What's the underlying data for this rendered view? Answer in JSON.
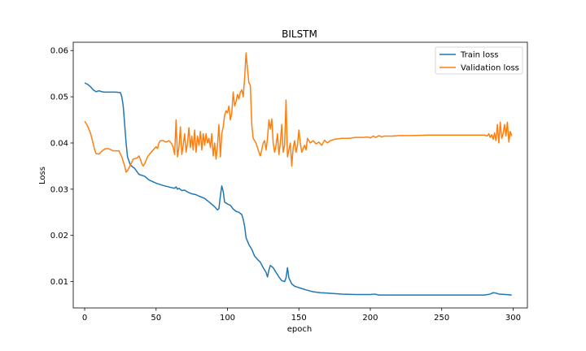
{
  "chart_data": {
    "type": "line",
    "title": "BILSTM",
    "xlabel": "epoch",
    "ylabel": "Loss",
    "xlim": [
      -8,
      310
    ],
    "ylim": [
      0.0043,
      0.0618
    ],
    "xticks": [
      0,
      50,
      100,
      150,
      200,
      250,
      300
    ],
    "yticks": [
      0.01,
      0.02,
      0.03,
      0.04,
      0.05,
      0.06
    ],
    "xtick_labels": [
      "0",
      "50",
      "100",
      "150",
      "200",
      "250",
      "300"
    ],
    "ytick_labels": [
      "0.01",
      "0.02",
      "0.03",
      "0.04",
      "0.05",
      "0.06"
    ],
    "grid": false,
    "legend_position": "top-right",
    "series": [
      {
        "name": "Train loss",
        "color": "#1f77b4",
        "points": [
          [
            0,
            0.053
          ],
          [
            2,
            0.0527
          ],
          [
            4,
            0.0522
          ],
          [
            6,
            0.0515
          ],
          [
            8,
            0.0511
          ],
          [
            10,
            0.0513
          ],
          [
            12,
            0.0511
          ],
          [
            14,
            0.051
          ],
          [
            18,
            0.051
          ],
          [
            22,
            0.051
          ],
          [
            25,
            0.0509
          ],
          [
            26,
            0.05
          ],
          [
            27,
            0.048
          ],
          [
            28,
            0.044
          ],
          [
            29,
            0.04
          ],
          [
            30,
            0.037
          ],
          [
            32,
            0.0352
          ],
          [
            35,
            0.0345
          ],
          [
            38,
            0.0332
          ],
          [
            42,
            0.0328
          ],
          [
            45,
            0.032
          ],
          [
            50,
            0.0313
          ],
          [
            55,
            0.0308
          ],
          [
            60,
            0.0304
          ],
          [
            63,
            0.0302
          ],
          [
            64,
            0.0305
          ],
          [
            65,
            0.03
          ],
          [
            66,
            0.0302
          ],
          [
            68,
            0.0297
          ],
          [
            70,
            0.0298
          ],
          [
            72,
            0.0294
          ],
          [
            75,
            0.029
          ],
          [
            78,
            0.0288
          ],
          [
            80,
            0.0285
          ],
          [
            84,
            0.028
          ],
          [
            88,
            0.027
          ],
          [
            91,
            0.0262
          ],
          [
            93,
            0.0255
          ],
          [
            94,
            0.0258
          ],
          [
            95,
            0.0285
          ],
          [
            96,
            0.0307
          ],
          [
            97,
            0.0295
          ],
          [
            98,
            0.0272
          ],
          [
            100,
            0.0268
          ],
          [
            102,
            0.0265
          ],
          [
            104,
            0.0257
          ],
          [
            106,
            0.0252
          ],
          [
            108,
            0.025
          ],
          [
            110,
            0.0245
          ],
          [
            111,
            0.0235
          ],
          [
            112,
            0.022
          ],
          [
            113,
            0.0195
          ],
          [
            115,
            0.018
          ],
          [
            117,
            0.017
          ],
          [
            119,
            0.0155
          ],
          [
            121,
            0.0148
          ],
          [
            123,
            0.0142
          ],
          [
            125,
            0.013
          ],
          [
            127,
            0.012
          ],
          [
            128,
            0.011
          ],
          [
            129,
            0.0125
          ],
          [
            130,
            0.0135
          ],
          [
            132,
            0.013
          ],
          [
            134,
            0.012
          ],
          [
            136,
            0.011
          ],
          [
            138,
            0.0102
          ],
          [
            140,
            0.01
          ],
          [
            141,
            0.0108
          ],
          [
            142,
            0.013
          ],
          [
            143,
            0.0108
          ],
          [
            145,
            0.0095
          ],
          [
            147,
            0.009
          ],
          [
            149,
            0.0088
          ],
          [
            152,
            0.0085
          ],
          [
            155,
            0.0082
          ],
          [
            160,
            0.0078
          ],
          [
            165,
            0.0076
          ],
          [
            170,
            0.0075
          ],
          [
            180,
            0.0073
          ],
          [
            190,
            0.0072
          ],
          [
            200,
            0.0072
          ],
          [
            203,
            0.0073
          ],
          [
            206,
            0.0071
          ],
          [
            210,
            0.0071
          ],
          [
            220,
            0.0071
          ],
          [
            240,
            0.0071
          ],
          [
            260,
            0.0071
          ],
          [
            280,
            0.0071
          ],
          [
            284,
            0.0073
          ],
          [
            286,
            0.0076
          ],
          [
            288,
            0.0075
          ],
          [
            290,
            0.0073
          ],
          [
            295,
            0.0072
          ],
          [
            299,
            0.0071
          ]
        ]
      },
      {
        "name": "Validation loss",
        "color": "#ff7f0e",
        "points": [
          [
            0,
            0.0447
          ],
          [
            2,
            0.0437
          ],
          [
            4,
            0.0422
          ],
          [
            6,
            0.0398
          ],
          [
            7,
            0.0385
          ],
          [
            8,
            0.0377
          ],
          [
            10,
            0.0376
          ],
          [
            12,
            0.0382
          ],
          [
            14,
            0.0387
          ],
          [
            16,
            0.0388
          ],
          [
            18,
            0.0386
          ],
          [
            20,
            0.0383
          ],
          [
            22,
            0.0383
          ],
          [
            24,
            0.0383
          ],
          [
            26,
            0.037
          ],
          [
            28,
            0.035
          ],
          [
            29,
            0.0337
          ],
          [
            30,
            0.034
          ],
          [
            32,
            0.0352
          ],
          [
            34,
            0.0365
          ],
          [
            37,
            0.0368
          ],
          [
            38,
            0.0372
          ],
          [
            39,
            0.0365
          ],
          [
            40,
            0.0355
          ],
          [
            41,
            0.035
          ],
          [
            42,
            0.0355
          ],
          [
            44,
            0.037
          ],
          [
            46,
            0.0378
          ],
          [
            48,
            0.0385
          ],
          [
            50,
            0.0392
          ],
          [
            51,
            0.0388
          ],
          [
            52,
            0.04
          ],
          [
            53,
            0.0405
          ],
          [
            55,
            0.0405
          ],
          [
            57,
            0.0402
          ],
          [
            59,
            0.0405
          ],
          [
            61,
            0.0398
          ],
          [
            62,
            0.039
          ],
          [
            63,
            0.0375
          ],
          [
            64,
            0.045
          ],
          [
            65,
            0.037
          ],
          [
            66,
            0.039
          ],
          [
            67,
            0.0435
          ],
          [
            68,
            0.0375
          ],
          [
            69,
            0.0395
          ],
          [
            70,
            0.042
          ],
          [
            71,
            0.038
          ],
          [
            72,
            0.04
          ],
          [
            73,
            0.0433
          ],
          [
            74,
            0.039
          ],
          [
            75,
            0.0415
          ],
          [
            76,
            0.0385
          ],
          [
            77,
            0.0428
          ],
          [
            78,
            0.038
          ],
          [
            79,
            0.0415
          ],
          [
            80,
            0.0395
          ],
          [
            81,
            0.0425
          ],
          [
            82,
            0.0385
          ],
          [
            83,
            0.042
          ],
          [
            84,
            0.0395
          ],
          [
            85,
            0.042
          ],
          [
            86,
            0.04
          ],
          [
            87,
            0.041
          ],
          [
            88,
            0.039
          ],
          [
            89,
            0.042
          ],
          [
            90,
            0.0372
          ],
          [
            91,
            0.04
          ],
          [
            92,
            0.0365
          ],
          [
            93,
            0.0395
          ],
          [
            94,
            0.044
          ],
          [
            95,
            0.037
          ],
          [
            96,
            0.042
          ],
          [
            97,
            0.0435
          ],
          [
            98,
            0.046
          ],
          [
            99,
            0.047
          ],
          [
            100,
            0.0465
          ],
          [
            101,
            0.048
          ],
          [
            102,
            0.045
          ],
          [
            103,
            0.0465
          ],
          [
            104,
            0.051
          ],
          [
            105,
            0.048
          ],
          [
            106,
            0.049
          ],
          [
            107,
            0.0505
          ],
          [
            108,
            0.0495
          ],
          [
            109,
            0.051
          ],
          [
            110,
            0.0515
          ],
          [
            111,
            0.05
          ],
          [
            112,
            0.054
          ],
          [
            113,
            0.0595
          ],
          [
            114,
            0.056
          ],
          [
            115,
            0.053
          ],
          [
            116,
            0.0525
          ],
          [
            117,
            0.044
          ],
          [
            118,
            0.041
          ],
          [
            119,
            0.0405
          ],
          [
            120,
            0.04
          ],
          [
            121,
            0.039
          ],
          [
            122,
            0.038
          ],
          [
            123,
            0.0372
          ],
          [
            124,
            0.0385
          ],
          [
            125,
            0.04
          ],
          [
            126,
            0.0405
          ],
          [
            127,
            0.0385
          ],
          [
            128,
            0.041
          ],
          [
            129,
            0.045
          ],
          [
            130,
            0.043
          ],
          [
            131,
            0.0452
          ],
          [
            132,
            0.04
          ],
          [
            133,
            0.038
          ],
          [
            134,
            0.0395
          ],
          [
            135,
            0.042
          ],
          [
            136,
            0.0375
          ],
          [
            137,
            0.04
          ],
          [
            138,
            0.044
          ],
          [
            139,
            0.038
          ],
          [
            140,
            0.0395
          ],
          [
            141,
            0.0493
          ],
          [
            142,
            0.037
          ],
          [
            143,
            0.0385
          ],
          [
            144,
            0.04
          ],
          [
            145,
            0.035
          ],
          [
            146,
            0.039
          ],
          [
            147,
            0.0405
          ],
          [
            148,
            0.038
          ],
          [
            149,
            0.0395
          ],
          [
            150,
            0.0428
          ],
          [
            151,
            0.04
          ],
          [
            152,
            0.038
          ],
          [
            154,
            0.0395
          ],
          [
            155,
            0.0385
          ],
          [
            156,
            0.041
          ],
          [
            158,
            0.04
          ],
          [
            160,
            0.0405
          ],
          [
            162,
            0.0398
          ],
          [
            164,
            0.0402
          ],
          [
            166,
            0.0395
          ],
          [
            168,
            0.0406
          ],
          [
            170,
            0.04
          ],
          [
            172,
            0.0405
          ],
          [
            175,
            0.0408
          ],
          [
            180,
            0.041
          ],
          [
            185,
            0.041
          ],
          [
            190,
            0.0412
          ],
          [
            195,
            0.0412
          ],
          [
            198,
            0.0413
          ],
          [
            200,
            0.0411
          ],
          [
            202,
            0.0415
          ],
          [
            204,
            0.0412
          ],
          [
            206,
            0.0416
          ],
          [
            208,
            0.0413
          ],
          [
            210,
            0.0415
          ],
          [
            215,
            0.0415
          ],
          [
            220,
            0.0416
          ],
          [
            230,
            0.0416
          ],
          [
            240,
            0.0417
          ],
          [
            250,
            0.0417
          ],
          [
            260,
            0.0417
          ],
          [
            270,
            0.0417
          ],
          [
            280,
            0.0417
          ],
          [
            282,
            0.0415
          ],
          [
            283,
            0.042
          ],
          [
            284,
            0.0412
          ],
          [
            285,
            0.0418
          ],
          [
            286,
            0.0408
          ],
          [
            287,
            0.0422
          ],
          [
            288,
            0.0405
          ],
          [
            289,
            0.044
          ],
          [
            290,
            0.04
          ],
          [
            291,
            0.0445
          ],
          [
            292,
            0.041
          ],
          [
            293,
            0.042
          ],
          [
            294,
            0.044
          ],
          [
            295,
            0.0415
          ],
          [
            296,
            0.0445
          ],
          [
            297,
            0.0402
          ],
          [
            298,
            0.0425
          ],
          [
            299,
            0.0415
          ]
        ]
      }
    ]
  }
}
